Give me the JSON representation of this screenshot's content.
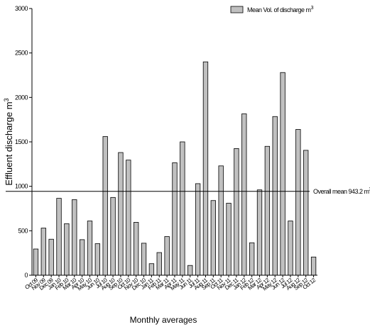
{
  "chart_data": {
    "type": "bar",
    "ylabel": "Effluent discharge m",
    "ylabel_sup": "3",
    "xlabel": "Monthly averages",
    "ylim": [
      0,
      3000
    ],
    "yticks": [
      0,
      500,
      1000,
      1500,
      2000,
      2500,
      3000
    ],
    "grid": false,
    "legend": {
      "position": "top-right",
      "label": "Mean Vol. of discharge m",
      "label_sup": "3",
      "color": "#c0c0c0"
    },
    "categories": [
      "Oct 09",
      "Nov 09",
      "Dec 09",
      "Jan 10",
      "Feb 10",
      "Mar 10",
      "Apr 10",
      "May 10",
      "Jun 10",
      "Jul 10",
      "Aug 10",
      "Sep 10",
      "Oct 10",
      "Nov 10",
      "Dec 10",
      "Jan 11",
      "Feb 11",
      "Mar 11",
      "Apr 11",
      "May 11",
      "Jun 11",
      "Jul 11",
      "Aug 11",
      "Sep 11",
      "Oct 11",
      "Nov 11",
      "Dec 11",
      "Jan 12",
      "Feb 12",
      "Mar 12",
      "Apr 12",
      "May 12",
      "Jun 12",
      "Jul 12",
      "Aug 12",
      "Sep 12",
      "Oct 12"
    ],
    "series": [
      {
        "name": "Mean Vol. of discharge m3",
        "color": "#c0c0c0",
        "values": [
          295,
          530,
          405,
          865,
          580,
          850,
          400,
          610,
          355,
          1560,
          875,
          1380,
          1295,
          595,
          360,
          130,
          255,
          435,
          1265,
          1500,
          110,
          1030,
          2400,
          840,
          1230,
          810,
          1425,
          1815,
          365,
          960,
          1450,
          1785,
          2280,
          610,
          1640,
          1405,
          205
        ]
      }
    ],
    "reference_line": {
      "value": 943.2,
      "label": "Overall mean 943.2 m",
      "label_sup": "3"
    }
  }
}
